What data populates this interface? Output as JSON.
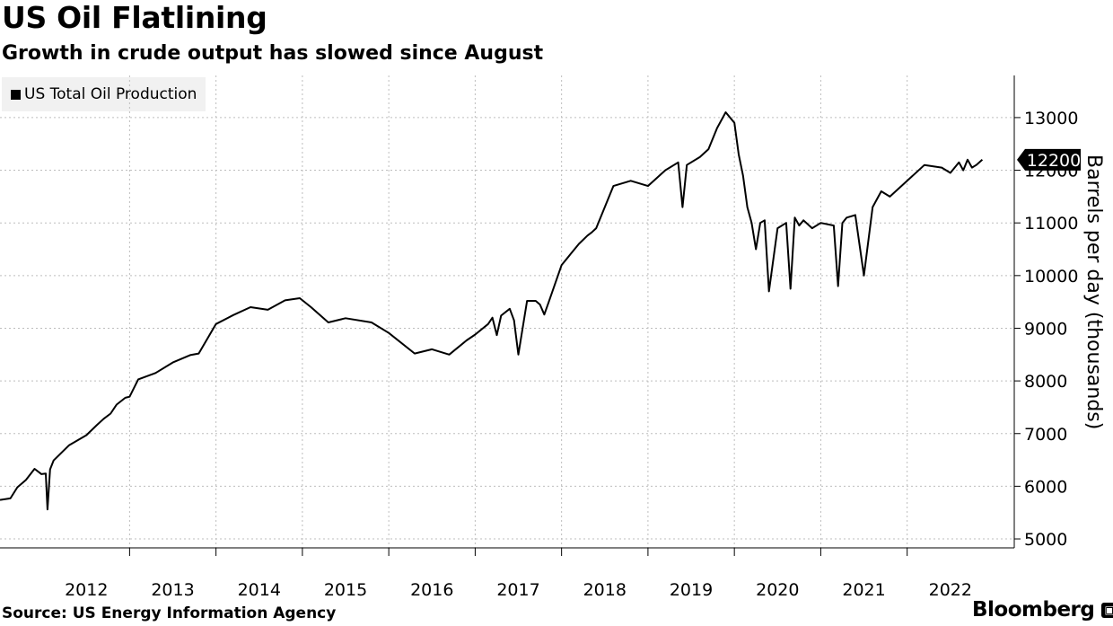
{
  "header": {
    "title": "US Oil Flatlining",
    "subtitle": "Growth in crude output has slowed since August"
  },
  "legend": {
    "label": "US Total Oil Production"
  },
  "footer": {
    "source": "Source: US Energy Information Agency",
    "brand": "Bloomberg",
    "brand_icon": "bloomberg-terminal-icon"
  },
  "colors": {
    "line": "#000000",
    "grid": "#bdbdbd",
    "legend_bg": "#f1f1f1",
    "callout_bg": "#000000"
  },
  "chart_data": {
    "type": "line",
    "title": "US Oil Flatlining",
    "subtitle": "Growth in crude output has slowed since August",
    "xlabel": "",
    "ylabel": "Barrels per day (thousands)",
    "ylim": [
      4830,
      13800
    ],
    "xlim": [
      2011.5,
      2022.98
    ],
    "y_ticks": [
      5000,
      6000,
      7000,
      8000,
      9000,
      10000,
      11000,
      12000,
      13000
    ],
    "x_tick_labels": [
      "2012",
      "2013",
      "2014",
      "2015",
      "2016",
      "2017",
      "2018",
      "2019",
      "2020",
      "2021",
      "2022"
    ],
    "grid": true,
    "legend_position": "top-left",
    "last_value_label": "12200",
    "series": [
      {
        "name": "US Total Oil Production",
        "x": [
          2011.5,
          2011.62,
          2011.7,
          2011.8,
          2011.9,
          2011.98,
          2012.03,
          2012.05,
          2012.08,
          2012.12,
          2012.3,
          2012.5,
          2012.62,
          2012.7,
          2012.78,
          2012.85,
          2012.95,
          2013.0,
          2013.1,
          2013.3,
          2013.5,
          2013.7,
          2013.8,
          2014.0,
          2014.2,
          2014.4,
          2014.6,
          2014.8,
          2014.97,
          2015.1,
          2015.3,
          2015.5,
          2015.8,
          2016.0,
          2016.3,
          2016.5,
          2016.7,
          2016.9,
          2017.0,
          2017.15,
          2017.2,
          2017.25,
          2017.3,
          2017.4,
          2017.45,
          2017.5,
          2017.6,
          2017.7,
          2017.75,
          2017.8,
          2017.85,
          2018.0,
          2018.2,
          2018.3,
          2018.35,
          2018.4,
          2018.6,
          2018.8,
          2019.0,
          2019.2,
          2019.35,
          2019.4,
          2019.45,
          2019.6,
          2019.7,
          2019.8,
          2019.9,
          2020.0,
          2020.05,
          2020.1,
          2020.15,
          2020.2,
          2020.25,
          2020.3,
          2020.35,
          2020.4,
          2020.5,
          2020.6,
          2020.65,
          2020.7,
          2020.75,
          2020.8,
          2020.9,
          2021.0,
          2021.15,
          2021.2,
          2021.25,
          2021.3,
          2021.4,
          2021.5,
          2021.6,
          2021.7,
          2021.8,
          2022.0,
          2022.2,
          2022.4,
          2022.5,
          2022.6,
          2022.65,
          2022.7,
          2022.75,
          2022.8,
          2022.87
        ],
        "values": [
          5740,
          5770,
          5980,
          6120,
          6330,
          6230,
          6240,
          5560,
          6320,
          6490,
          6780,
          6970,
          7160,
          7280,
          7380,
          7550,
          7680,
          7700,
          8030,
          8150,
          8350,
          8490,
          8520,
          9080,
          9250,
          9400,
          9350,
          9530,
          9570,
          9400,
          9110,
          9190,
          9110,
          8910,
          8520,
          8600,
          8500,
          8770,
          8880,
          9080,
          9200,
          8870,
          9240,
          9370,
          9150,
          8500,
          9520,
          9520,
          9450,
          9260,
          9490,
          10200,
          10600,
          10760,
          10820,
          10900,
          11700,
          11800,
          11700,
          12000,
          12150,
          11300,
          12100,
          12250,
          12400,
          12800,
          13100,
          12900,
          12300,
          11900,
          11300,
          11000,
          10500,
          11000,
          11050,
          9700,
          10900,
          11000,
          9750,
          11100,
          10950,
          11050,
          10900,
          11000,
          10950,
          9800,
          11000,
          11100,
          11150,
          10000,
          11300,
          11600,
          11500,
          11800,
          12100,
          12050,
          11950,
          12150,
          12000,
          12200,
          12050,
          12100,
          12200
        ]
      }
    ]
  }
}
